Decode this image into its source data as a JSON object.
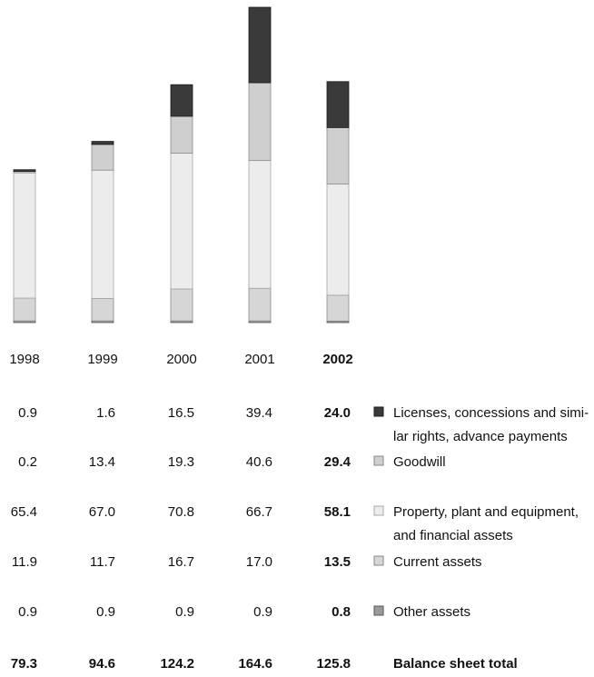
{
  "chart_data": {
    "type": "bar",
    "stacked": true,
    "categories": [
      "1998",
      "1999",
      "2000",
      "2001",
      "2002"
    ],
    "highlighted_category": "2002",
    "series": [
      {
        "name": "Licenses, concessions and similar rights, advance payments",
        "legend_lines": [
          "Licenses, concessions and simi-",
          "lar rights, advance payments"
        ],
        "values": [
          0.9,
          1.6,
          16.5,
          39.4,
          24.0
        ],
        "color": "#3a3a3a",
        "outline": "#1a1a1a"
      },
      {
        "name": "Goodwill",
        "legend_lines": [
          "Goodwill"
        ],
        "values": [
          0.2,
          13.4,
          19.3,
          40.6,
          29.4
        ],
        "color": "#cfcfcf",
        "outline": "#8a8a8a"
      },
      {
        "name": "Property, plant and equipment, and financial assets",
        "legend_lines": [
          "Property, plant and equipment,",
          "and financial assets"
        ],
        "values": [
          65.4,
          67.0,
          70.8,
          66.7,
          58.1
        ],
        "color": "#ececec",
        "outline": "#a8a8a8"
      },
      {
        "name": "Current assets",
        "legend_lines": [
          "Current assets"
        ],
        "values": [
          11.9,
          11.7,
          16.7,
          17.0,
          13.5
        ],
        "color": "#d6d6d6",
        "outline": "#8a8a8a"
      },
      {
        "name": "Other assets",
        "legend_lines": [
          "Other assets"
        ],
        "values": [
          0.9,
          0.9,
          0.9,
          0.9,
          0.8
        ],
        "color": "#9a9a9a",
        "outline": "#555555"
      }
    ],
    "value_labels": [
      [
        "0.9",
        "1.6",
        "16.5",
        "39.4",
        "24.0"
      ],
      [
        "0.2",
        "13.4",
        "19.3",
        "40.6",
        "29.4"
      ],
      [
        "65.4",
        "67.0",
        "70.8",
        "66.7",
        "58.1"
      ],
      [
        "11.9",
        "11.7",
        "16.7",
        "17.0",
        "13.5"
      ],
      [
        "0.9",
        "0.9",
        "0.9",
        "0.9",
        "0.8"
      ]
    ],
    "totals_label": "Balance sheet total",
    "totals": [
      79.3,
      94.6,
      124.2,
      164.6,
      125.8
    ],
    "totals_text": [
      "79.3",
      "94.6",
      "124.2",
      "164.6",
      "125.8"
    ],
    "ylim": [
      0,
      164.6
    ],
    "grid": false,
    "legend_position": "right of table"
  }
}
